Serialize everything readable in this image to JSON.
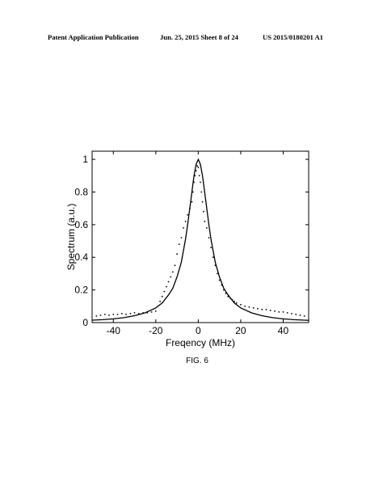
{
  "header": {
    "left": "Patent Application Publication",
    "center": "Jun. 25, 2015  Sheet 8 of 24",
    "right": "US 2015/0180201 A1"
  },
  "figure_label": "FIG. 6",
  "chart_data": {
    "type": "scatter",
    "title": "",
    "xlabel": "Freqency (MHz)",
    "ylabel": "Spectrum (a.u.)",
    "xlim": [
      -50,
      52
    ],
    "ylim": [
      0,
      1.05
    ],
    "xticks": [
      -40,
      -20,
      0,
      20,
      40
    ],
    "yticks": [
      0,
      0.2,
      0.4,
      0.6,
      0.8,
      1
    ],
    "grid": false,
    "legend": "none",
    "series": [
      {
        "style": "dots",
        "description_values": "measured spectrum, dot samples",
        "x": [
          -48,
          -46,
          -44,
          -42,
          -40,
          -38,
          -36,
          -34,
          -32,
          -30,
          -28,
          -26,
          -24,
          -22,
          -20,
          -18,
          -17,
          -16,
          -15,
          -14,
          -13,
          -12,
          -11,
          -10,
          -9,
          -8,
          -7,
          -6,
          -5,
          -4,
          -3,
          -2.5,
          -2,
          -1.5,
          -1,
          -0.5,
          0,
          0.5,
          1,
          1.5,
          2,
          2.5,
          3,
          4,
          5,
          6,
          7,
          8,
          9,
          10,
          11,
          12,
          13,
          14,
          15,
          16,
          17,
          18,
          20,
          22,
          24,
          26,
          28,
          30,
          32,
          34,
          36,
          38,
          40,
          42,
          44,
          46,
          48,
          50
        ],
        "y": [
          0.04,
          0.045,
          0.05,
          0.045,
          0.05,
          0.05,
          0.055,
          0.05,
          0.055,
          0.06,
          0.055,
          0.06,
          0.06,
          0.065,
          0.07,
          0.13,
          0.16,
          0.19,
          0.22,
          0.25,
          0.28,
          0.31,
          0.35,
          0.42,
          0.48,
          0.52,
          0.58,
          0.62,
          0.66,
          0.7,
          0.74,
          0.8,
          0.86,
          0.9,
          0.93,
          0.96,
          0.95,
          0.9,
          0.86,
          0.8,
          0.74,
          0.68,
          0.62,
          0.58,
          0.52,
          0.46,
          0.4,
          0.35,
          0.3,
          0.26,
          0.23,
          0.2,
          0.18,
          0.16,
          0.15,
          0.14,
          0.13,
          0.12,
          0.11,
          0.1,
          0.095,
          0.09,
          0.085,
          0.08,
          0.08,
          0.075,
          0.07,
          0.065,
          0.065,
          0.06,
          0.055,
          0.05,
          0.045,
          0.04
        ]
      },
      {
        "style": "line",
        "description_values": "Lorentzian fit",
        "x": [
          -50,
          -45,
          -40,
          -35,
          -30,
          -25,
          -20,
          -17,
          -14,
          -12,
          -10,
          -8,
          -6,
          -5,
          -4,
          -3,
          -2,
          -1,
          0,
          1,
          2,
          3,
          4,
          5,
          6,
          8,
          10,
          12,
          14,
          17,
          20,
          25,
          30,
          35,
          40,
          45,
          50,
          52
        ],
        "y": [
          0.015,
          0.018,
          0.023,
          0.03,
          0.042,
          0.06,
          0.09,
          0.12,
          0.17,
          0.21,
          0.28,
          0.37,
          0.51,
          0.6,
          0.7,
          0.8,
          0.9,
          0.97,
          1.0,
          0.97,
          0.9,
          0.8,
          0.7,
          0.6,
          0.51,
          0.37,
          0.28,
          0.21,
          0.17,
          0.12,
          0.09,
          0.06,
          0.042,
          0.03,
          0.023,
          0.018,
          0.015,
          0.014
        ]
      }
    ]
  }
}
